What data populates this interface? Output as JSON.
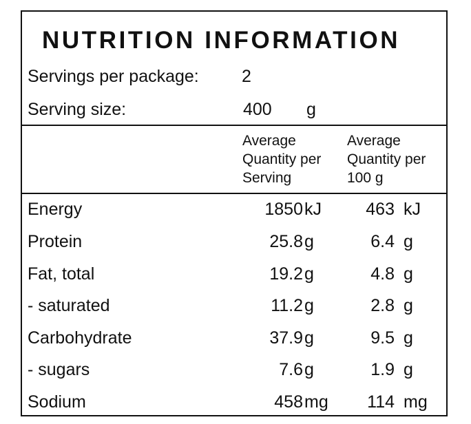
{
  "title": "NUTRITION INFORMATION",
  "servings": {
    "label": "Servings per package:",
    "value": "2"
  },
  "serving_size": {
    "label": "Serving size:",
    "value": "400",
    "unit": "g"
  },
  "headers": {
    "per_serving": [
      "Average",
      "Quantity per",
      "Serving"
    ],
    "per_100g": [
      "Average",
      "Quantity per",
      "100 g"
    ]
  },
  "rows": [
    {
      "name": "Energy",
      "serving": "1850",
      "serving_unit": "kJ",
      "per100": "463",
      "per100_unit": "kJ"
    },
    {
      "name": "Protein",
      "serving": "25.8",
      "serving_unit": "g",
      "per100": "6.4",
      "per100_unit": "g"
    },
    {
      "name": "Fat, total",
      "serving": "19.2",
      "serving_unit": "g",
      "per100": "4.8",
      "per100_unit": "g"
    },
    {
      "name": "- saturated",
      "serving": "11.2",
      "serving_unit": "g",
      "per100": "2.8",
      "per100_unit": "g"
    },
    {
      "name": "Carbohydrate",
      "serving": "37.9",
      "serving_unit": "g",
      "per100": "9.5",
      "per100_unit": "g"
    },
    {
      "name": "- sugars",
      "serving": "7.6",
      "serving_unit": "g",
      "per100": "1.9",
      "per100_unit": "g"
    },
    {
      "name": "Sodium",
      "serving": "458",
      "serving_unit": "mg",
      "per100": "114",
      "per100_unit": "mg"
    }
  ]
}
